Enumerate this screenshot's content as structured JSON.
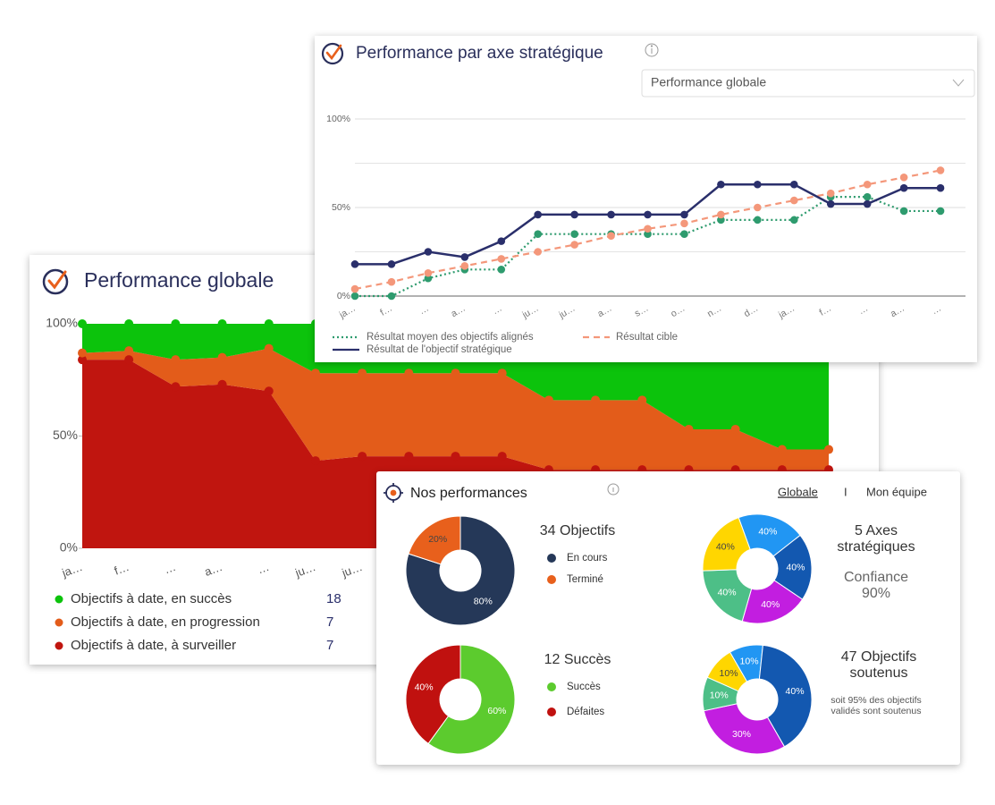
{
  "global_card": {
    "title": "Performance globale",
    "chart": {
      "type": "stacked_area",
      "categories": [
        "ja…",
        "f…",
        "…",
        "a…",
        "…",
        "ju…",
        "ju…",
        null,
        null,
        null,
        null,
        null,
        null,
        null,
        null,
        null,
        null
      ],
      "ylim": [
        0,
        100
      ],
      "yticks": [
        {
          "value": 0,
          "label": "0%"
        },
        {
          "value": 50,
          "label": "50%"
        },
        {
          "value": 100,
          "label": "100%"
        }
      ],
      "series": [
        {
          "name": "Objectifs à date, en succès",
          "color": "#0cc30c",
          "count": 18,
          "values": [
            13,
            12,
            16,
            15,
            11,
            22,
            22,
            22,
            22,
            22,
            34,
            34,
            34,
            47,
            47,
            56,
            56
          ]
        },
        {
          "name": "Objectifs à date, en progression",
          "color": "#e35c1a",
          "count": 7,
          "values": [
            3,
            4,
            12,
            12,
            19,
            39,
            37,
            37,
            37,
            37,
            31,
            31,
            31,
            18,
            18,
            9,
            9
          ]
        },
        {
          "name": "Objectifs à date, à surveiller",
          "color": "#c0150f",
          "count": 7,
          "values": [
            84,
            84,
            72,
            73,
            70,
            39,
            41,
            41,
            41,
            41,
            35,
            35,
            35,
            35,
            35,
            35,
            35
          ]
        }
      ]
    }
  },
  "axis_card": {
    "title": "Performance par axe stratégique",
    "select": "Performance globale",
    "chart": {
      "type": "line",
      "categories": [
        "ja…",
        "f…",
        "…",
        "a…",
        "…",
        "ju…",
        "ju…",
        "a…",
        "s…",
        "o…",
        "n…",
        "d…",
        "ja…",
        "f…",
        "…",
        "a…",
        "…"
      ],
      "ylim": [
        0,
        100
      ],
      "yticks": [
        {
          "value": 0,
          "label": "0%"
        },
        {
          "value": 50,
          "label": "50%"
        },
        {
          "value": 100,
          "label": "100%"
        }
      ],
      "minor_grid": [
        25,
        75
      ],
      "series": [
        {
          "name": "Résultat moyen des objectifs alignés",
          "color": "#2e9b6e",
          "dash": "dotted",
          "values": [
            0,
            0,
            10,
            15,
            15,
            35,
            35,
            35,
            35,
            35,
            43,
            43,
            43,
            56,
            56,
            48,
            48
          ]
        },
        {
          "name": "Résultat cible",
          "color": "#f4977a",
          "dash": "dashed",
          "values": [
            4,
            8,
            13,
            17,
            21,
            25,
            29,
            34,
            38,
            41,
            46,
            50,
            54,
            58,
            63,
            67,
            71
          ]
        },
        {
          "name": "Résultat de l'objectif stratégique",
          "color": "#2a2f6b",
          "dash": "solid",
          "values": [
            18,
            18,
            25,
            22,
            31,
            46,
            46,
            46,
            46,
            46,
            63,
            63,
            63,
            52,
            52,
            61,
            61
          ]
        }
      ]
    }
  },
  "perf_card": {
    "title": "Nos performances",
    "tabs": [
      "Globale",
      "I",
      "Mon équipe"
    ],
    "donuts": [
      {
        "type": "donut",
        "title": "34 Objectifs",
        "values": [
          80,
          20
        ],
        "value_labels": [
          "80%",
          "20%"
        ],
        "colors": [
          "#253858",
          "#e8601c"
        ],
        "legend": [
          "En cours",
          "Terminé"
        ]
      },
      {
        "type": "donut",
        "title": "5 Axes stratégiques",
        "subtitle": "Confiance 90%",
        "values": [
          40,
          40,
          40,
          40,
          40
        ],
        "value_labels": [
          "40%",
          "40%",
          "40%",
          "40%",
          "40%"
        ],
        "colors": [
          "#2196f3",
          "#1358b0",
          "#c21ee0",
          "#4dbf87",
          "#ffd600"
        ]
      },
      {
        "type": "donut",
        "title": "12 Succès",
        "values": [
          60,
          40
        ],
        "value_labels": [
          "60%",
          "40%"
        ],
        "colors": [
          "#5ccb2e",
          "#c0110f"
        ],
        "legend": [
          "Succès",
          "Défaites"
        ]
      },
      {
        "type": "donut",
        "title": "47 Objectifs soutenus",
        "note": "soit 95% des objectifs validés sont soutenus",
        "values": [
          10,
          40,
          30,
          10,
          10
        ],
        "value_labels": [
          "10%",
          "40%",
          "30%",
          "10%",
          "10%"
        ],
        "colors": [
          "#2196f3",
          "#1358b0",
          "#c21ee0",
          "#4dbf87",
          "#ffd600"
        ]
      }
    ]
  }
}
